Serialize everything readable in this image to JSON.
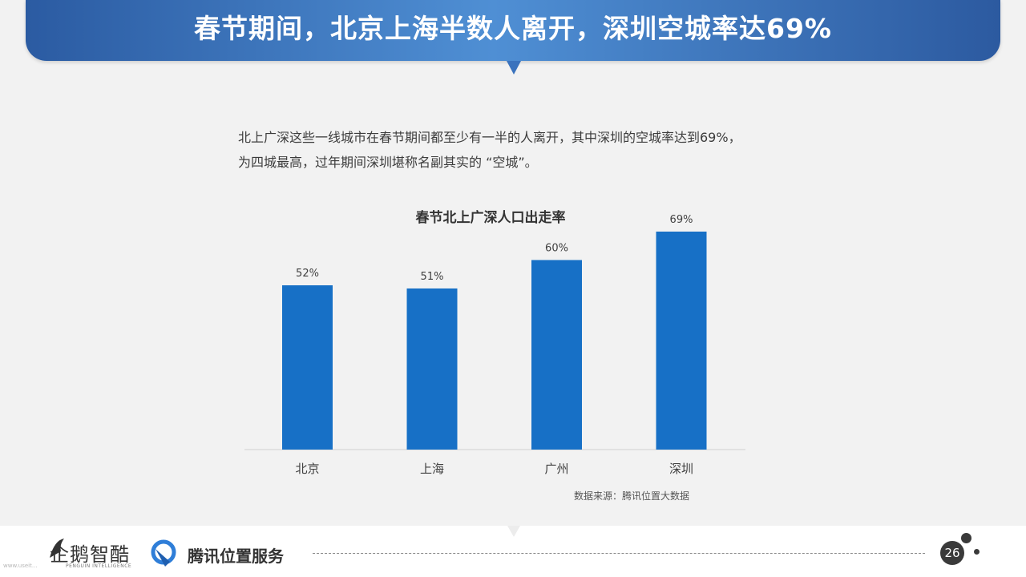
{
  "header": {
    "title": "春节期间，北京上海半数人离开，深圳空城率达69%"
  },
  "intro": {
    "line1": "北上广深这些一线城市在春节期间都至少有一半的人离开，其中深圳的空城率达到69%，",
    "line2": "为四城最高，过年期间深圳堪称名副其实的 “空城”。"
  },
  "chart_data": {
    "type": "bar",
    "title": "春节北上广深人口出走率",
    "categories": [
      "北京",
      "上海",
      "广州",
      "深圳"
    ],
    "values": [
      52,
      51,
      60,
      69
    ],
    "value_labels": [
      "52%",
      "51%",
      "60%",
      "69%"
    ],
    "unit": "%",
    "ylim": [
      0,
      80
    ],
    "grid": false,
    "legend": "none",
    "bar_color": "#1770c6"
  },
  "source": "数据来源：腾讯位置大数据",
  "footer": {
    "logo_text": "企鹅智酷",
    "logo_subtext": "PENGUIN INTELLIGENCE",
    "partner_text": "腾讯位置服务",
    "page_number": "26",
    "watermark": "www.useit..."
  },
  "colors": {
    "banner_dark": "#2b5ba2",
    "banner_light": "#4f8fd4",
    "bar": "#1770c6",
    "background": "#f2f2f2"
  }
}
